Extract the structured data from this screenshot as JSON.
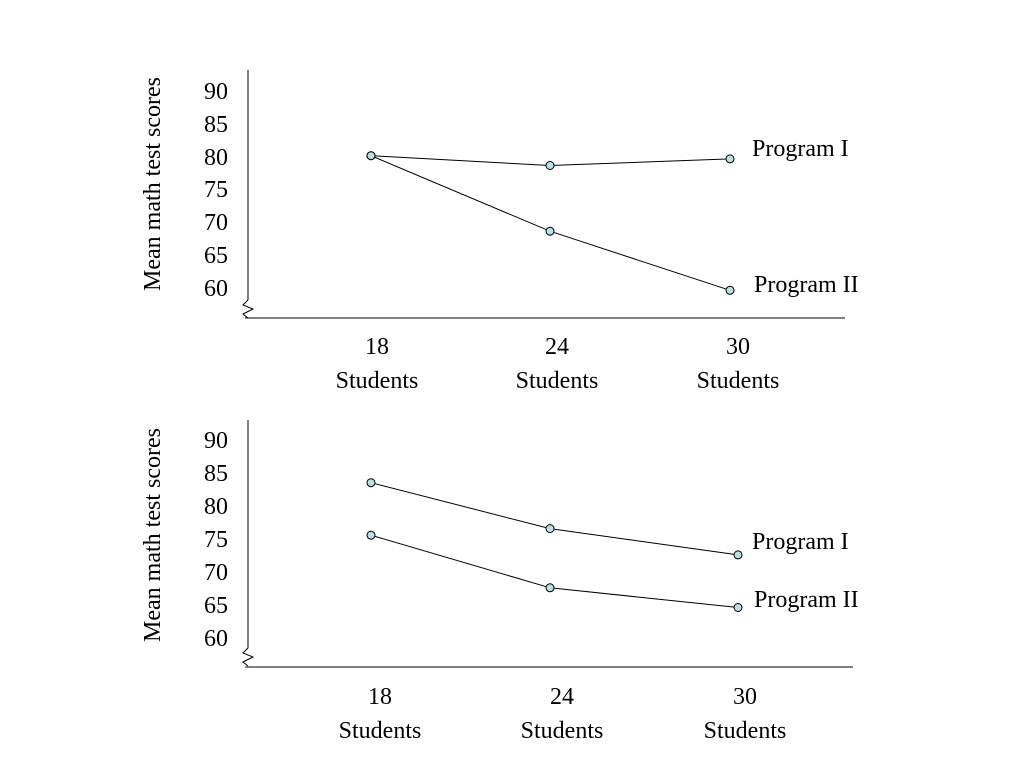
{
  "colors": {
    "marker_fill": "#b9e0e6",
    "line": "#000000",
    "background": "#ffffff"
  },
  "chart_data": [
    {
      "type": "line",
      "ylabel": "Mean math test scores",
      "yticks": [
        60,
        65,
        70,
        75,
        80,
        85,
        90
      ],
      "categories": [
        {
          "number": "18",
          "unit": "Students"
        },
        {
          "number": "24",
          "unit": "Students"
        },
        {
          "number": "30",
          "unit": "Students"
        }
      ],
      "series": [
        {
          "name": "Program I",
          "values": [
            80,
            78.5,
            79.5
          ]
        },
        {
          "name": "Program II",
          "values": [
            80,
            68.5,
            59.5
          ]
        }
      ],
      "axis_break": true
    },
    {
      "type": "line",
      "ylabel": "Mean math test scores",
      "yticks": [
        60,
        65,
        70,
        75,
        80,
        85,
        90
      ],
      "categories": [
        {
          "number": "18",
          "unit": "Students"
        },
        {
          "number": "24",
          "unit": "Students"
        },
        {
          "number": "30",
          "unit": "Students"
        }
      ],
      "series": [
        {
          "name": "Program I",
          "values": [
            83.5,
            76.5,
            72.5
          ]
        },
        {
          "name": "Program II",
          "values": [
            75.5,
            67.5,
            64.5
          ]
        }
      ],
      "axis_break": true
    }
  ]
}
